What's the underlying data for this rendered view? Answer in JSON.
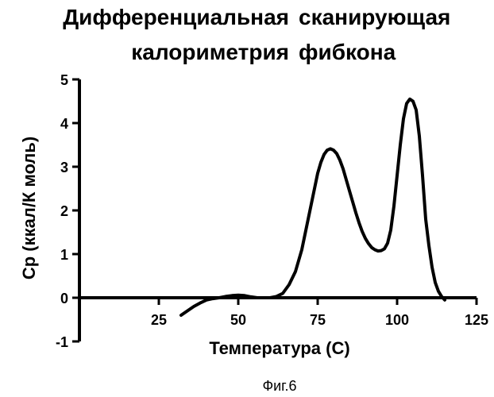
{
  "chart_data": {
    "type": "line",
    "title_left": "Дифференциальная\nкалориметрия",
    "title_right": "сканирующая\nфибкона",
    "xlabel": "Температура (С)",
    "ylabel": "Ср (ккал/К моль)",
    "caption": "Фиг.6",
    "xlim": [
      0,
      125
    ],
    "ylim": [
      -1,
      5
    ],
    "xticks": [
      25,
      50,
      75,
      100,
      125
    ],
    "yticks": [
      -1,
      0,
      1,
      2,
      3,
      4,
      5
    ],
    "series": [
      {
        "x": [
          32,
          34,
          36,
          38,
          40,
          42,
          44,
          46,
          48,
          50,
          52,
          54,
          56,
          58,
          60,
          62,
          64,
          66,
          68,
          70,
          72,
          74,
          75,
          76,
          77,
          78,
          79,
          80,
          81,
          82,
          83,
          84,
          85,
          86,
          87,
          88,
          89,
          90,
          91,
          92,
          93,
          94,
          95,
          96,
          97,
          98,
          99,
          100,
          101,
          102,
          103,
          104,
          105,
          106,
          107,
          108,
          109,
          110,
          111,
          112,
          113,
          114,
          115
        ],
        "y": [
          -0.4,
          -0.3,
          -0.2,
          -0.12,
          -0.05,
          -0.02,
          0,
          0.03,
          0.05,
          0.06,
          0.05,
          0.02,
          0,
          0,
          0,
          0.03,
          0.1,
          0.3,
          0.6,
          1.1,
          1.8,
          2.5,
          2.85,
          3.1,
          3.28,
          3.38,
          3.41,
          3.38,
          3.3,
          3.15,
          2.95,
          2.7,
          2.45,
          2.2,
          1.95,
          1.72,
          1.52,
          1.36,
          1.24,
          1.15,
          1.1,
          1.07,
          1.08,
          1.12,
          1.25,
          1.55,
          2.1,
          2.8,
          3.5,
          4.1,
          4.45,
          4.55,
          4.5,
          4.3,
          3.7,
          2.8,
          1.8,
          1.2,
          0.7,
          0.35,
          0.15,
          0.03,
          -0.05
        ]
      }
    ]
  }
}
